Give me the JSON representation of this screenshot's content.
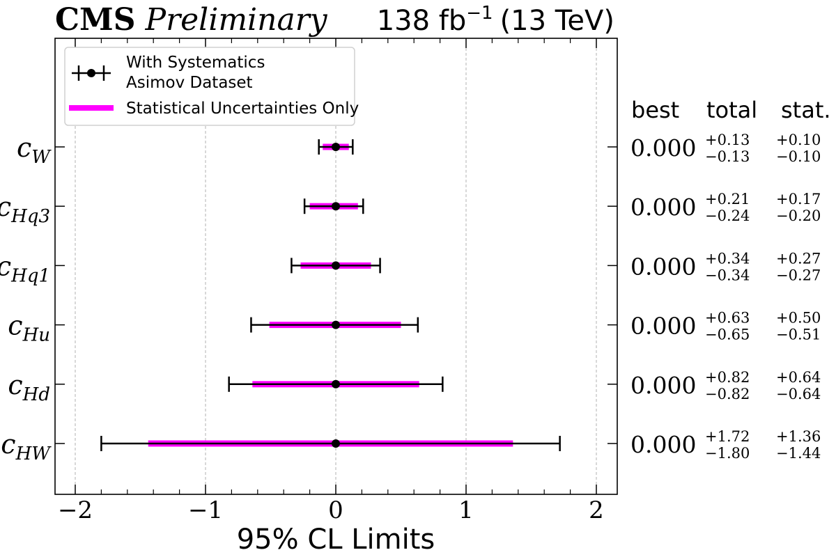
{
  "header": {
    "brand": "CMS",
    "status": "Preliminary",
    "lumi_prefix": "138 fb",
    "lumi_exponent": "−1",
    "lumi_suffix": "(13 TeV)"
  },
  "legend": {
    "systematics_line1": "With Systematics",
    "systematics_line2": "Asimov Dataset",
    "stat_only": "Statistical Uncertainties Only"
  },
  "table_headers": {
    "best": "best",
    "total": "total",
    "stat": "stat."
  },
  "chart_data": {
    "type": "errorbar",
    "xlabel": "95% CL Limits",
    "xlim": [
      -2.15,
      2.15
    ],
    "xticks": [
      -2,
      -1,
      0,
      1,
      2
    ],
    "xtick_labels": [
      "−2",
      "−1",
      "0",
      "1",
      "2"
    ],
    "grid_x": true,
    "legend_position": "upper-left",
    "colors": {
      "total": "#000000",
      "stat": "#ff00ff",
      "grid": "#b0b0b0"
    },
    "parameters": [
      {
        "base": "c",
        "sub": "W",
        "best": 0.0,
        "best_label": "0.000",
        "total_up": 0.13,
        "total_down": 0.13,
        "stat_up": 0.1,
        "stat_down": 0.1,
        "total_up_label": "+0.13",
        "total_down_label": "−0.13",
        "stat_up_label": "+0.10",
        "stat_down_label": "−0.10"
      },
      {
        "base": "c",
        "sub": "Hq3",
        "best": 0.0,
        "best_label": "0.000",
        "total_up": 0.21,
        "total_down": 0.24,
        "stat_up": 0.17,
        "stat_down": 0.2,
        "total_up_label": "+0.21",
        "total_down_label": "−0.24",
        "stat_up_label": "+0.17",
        "stat_down_label": "−0.20"
      },
      {
        "base": "c",
        "sub": "Hq1",
        "best": 0.0,
        "best_label": "0.000",
        "total_up": 0.34,
        "total_down": 0.34,
        "stat_up": 0.27,
        "stat_down": 0.27,
        "total_up_label": "+0.34",
        "total_down_label": "−0.34",
        "stat_up_label": "+0.27",
        "stat_down_label": "−0.27"
      },
      {
        "base": "c",
        "sub": "Hu",
        "best": 0.0,
        "best_label": "0.000",
        "total_up": 0.63,
        "total_down": 0.65,
        "stat_up": 0.5,
        "stat_down": 0.51,
        "total_up_label": "+0.63",
        "total_down_label": "−0.65",
        "stat_up_label": "+0.50",
        "stat_down_label": "−0.51"
      },
      {
        "base": "c",
        "sub": "Hd",
        "best": 0.0,
        "best_label": "0.000",
        "total_up": 0.82,
        "total_down": 0.82,
        "stat_up": 0.64,
        "stat_down": 0.64,
        "total_up_label": "+0.82",
        "total_down_label": "−0.82",
        "stat_up_label": "+0.64",
        "stat_down_label": "−0.64"
      },
      {
        "base": "c",
        "sub": "HW",
        "best": 0.0,
        "best_label": "0.000",
        "total_up": 1.72,
        "total_down": 1.8,
        "stat_up": 1.36,
        "stat_down": 1.44,
        "total_up_label": "+1.72",
        "total_down_label": "−1.80",
        "stat_up_label": "+1.36",
        "stat_down_label": "−1.44"
      }
    ]
  }
}
